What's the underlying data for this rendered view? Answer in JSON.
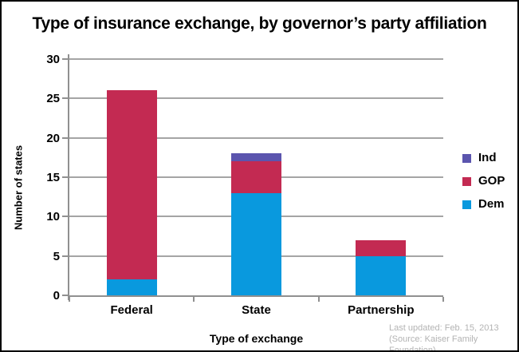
{
  "chart_data": {
    "type": "bar",
    "stacked": true,
    "title": "Type of insurance exchange, by governor’s party affiliation",
    "xlabel": "Type of exchange",
    "ylabel": "Number of states",
    "categories": [
      "Federal",
      "State",
      "Partnership"
    ],
    "series": [
      {
        "name": "Dem",
        "color": "#0999DE",
        "values": [
          2,
          13,
          5
        ]
      },
      {
        "name": "GOP",
        "color": "#C32A52",
        "values": [
          24,
          4,
          2
        ]
      },
      {
        "name": "Ind",
        "color": "#5B55AE",
        "values": [
          0,
          1,
          0
        ]
      }
    ],
    "ylim": [
      0,
      30
    ],
    "yticks": [
      0,
      5,
      10,
      15,
      20,
      25,
      30
    ],
    "legend_order": [
      "Ind",
      "GOP",
      "Dem"
    ],
    "legend_position": "right",
    "grid": "horizontal",
    "grid_color": "#A5A5A5",
    "axis_color": "#909090",
    "title_color": "#000000",
    "footer_color": "#B3B3B3"
  },
  "footer": {
    "line1": "Last updated: Feb. 15, 2013",
    "line2": "(Source: Kaiser Family Foundation)"
  }
}
